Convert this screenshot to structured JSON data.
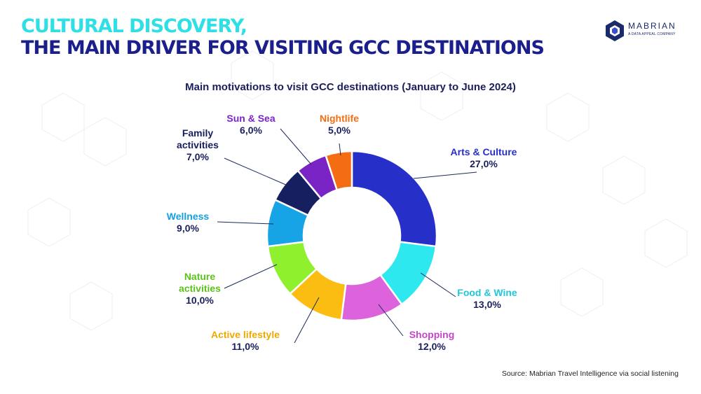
{
  "headline": {
    "line1": "CULTURAL DISCOVERY,",
    "line2": "THE MAIN DRIVER FOR VISITING GCC DESTINATIONS"
  },
  "logo": {
    "name": "MABRIAN",
    "tagline": "A DATA APPEAL COMPANY"
  },
  "source": "Source: Mabrian Travel Intelligence via social listening",
  "chart_data": {
    "type": "pie",
    "title": "Main motivations to visit GCC destinations (January to June 2024)",
    "donut": true,
    "legend": "none",
    "slices": [
      {
        "label": "Arts & Culture",
        "value": 27.0,
        "display": "27,0%",
        "color": "#2630c9"
      },
      {
        "label": "Food & Wine",
        "value": 13.0,
        "display": "13,0%",
        "color": "#2ee8f0"
      },
      {
        "label": "Shopping",
        "value": 12.0,
        "display": "12,0%",
        "color": "#dc63dc"
      },
      {
        "label": "Active lifestyle",
        "value": 11.0,
        "display": "11,0%",
        "color": "#fbbd12"
      },
      {
        "label": "Nature activities",
        "value": 10.0,
        "display": "10,0%",
        "color": "#8ff02e"
      },
      {
        "label": "Wellness",
        "value": 9.0,
        "display": "9,0%",
        "color": "#17a4e6"
      },
      {
        "label": "Family activities",
        "value": 7.0,
        "display": "7,0%",
        "color": "#162060"
      },
      {
        "label": "Sun & Sea",
        "value": 6.0,
        "display": "6,0%",
        "color": "#7a24c6"
      },
      {
        "label": "Nightlife",
        "value": 5.0,
        "display": "5,0%",
        "color": "#f56d12"
      }
    ]
  }
}
